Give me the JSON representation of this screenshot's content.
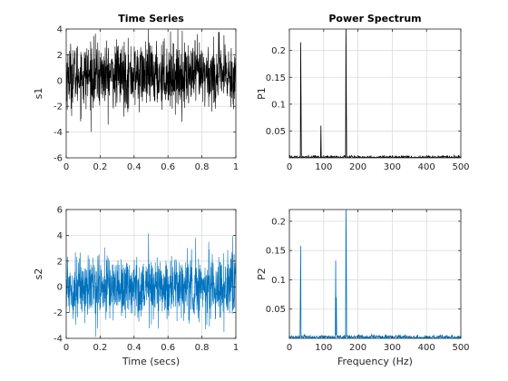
{
  "chart_data": [
    {
      "type": "line",
      "title": "Time Series",
      "xlabel": "",
      "ylabel": "s1",
      "xlim": [
        0,
        1
      ],
      "ylim": [
        -6,
        4
      ],
      "xticks": [
        0,
        0.2,
        0.4,
        0.6,
        0.8,
        1
      ],
      "yticks": [
        -6,
        -4,
        -2,
        0,
        2,
        4
      ],
      "xtick_labels": [
        "0",
        "0.2",
        "0.4",
        "0.6",
        "0.8",
        "1"
      ],
      "ytick_labels": [
        "-6",
        "-4",
        "-2",
        "0",
        "2",
        "4"
      ],
      "grid": true,
      "series": [
        {
          "color": "#000000",
          "sample_rate_hz": 1000,
          "x_start": 0,
          "x_end": 1,
          "mean": 0.4,
          "spread": 1.25,
          "min": -4.2,
          "max": 4
        }
      ]
    },
    {
      "type": "line",
      "title": "Power Spectrum",
      "xlabel": "",
      "ylabel": "P1",
      "xlim": [
        0,
        500
      ],
      "ylim": [
        0,
        0.24
      ],
      "xticks": [
        0,
        100,
        200,
        300,
        400,
        500
      ],
      "yticks": [
        0.05,
        0.1,
        0.15,
        0.2
      ],
      "xtick_labels": [
        "0",
        "100",
        "200",
        "300",
        "400",
        "500"
      ],
      "ytick_labels": [
        "0.05",
        "0.1",
        "0.15",
        "0.2"
      ],
      "grid": true,
      "series": [
        {
          "color": "#000000",
          "noise_floor": 0.004,
          "peaks": [
            {
              "x": 33,
              "y": 0.215
            },
            {
              "x": 34,
              "y": 0.115
            },
            {
              "x": 92,
              "y": 0.06
            },
            {
              "x": 165,
              "y": 0.25
            },
            {
              "x": 166,
              "y": 0.12
            }
          ]
        }
      ]
    },
    {
      "type": "line",
      "title": "",
      "xlabel": "Time (secs)",
      "ylabel": "s2",
      "xlim": [
        0,
        1
      ],
      "ylim": [
        -4,
        6
      ],
      "xticks": [
        0,
        0.2,
        0.4,
        0.6,
        0.8,
        1
      ],
      "yticks": [
        -4,
        -2,
        0,
        2,
        4,
        6
      ],
      "xtick_labels": [
        "0",
        "0.2",
        "0.4",
        "0.6",
        "0.8",
        "1"
      ],
      "ytick_labels": [
        "-4",
        "-2",
        "0",
        "2",
        "4",
        "6"
      ],
      "grid": true,
      "series": [
        {
          "color": "#0072bd",
          "sample_rate_hz": 1000,
          "x_start": 0,
          "x_end": 1,
          "mean": 0,
          "spread": 1.2,
          "min": -4,
          "max": 4.5
        }
      ]
    },
    {
      "type": "line",
      "title": "",
      "xlabel": "Frequency (Hz)",
      "ylabel": "P2",
      "xlim": [
        0,
        500
      ],
      "ylim": [
        0,
        0.22
      ],
      "xticks": [
        0,
        100,
        200,
        300,
        400,
        500
      ],
      "yticks": [
        0.05,
        0.1,
        0.15,
        0.2
      ],
      "xtick_labels": [
        "0",
        "100",
        "200",
        "300",
        "400",
        "500"
      ],
      "ytick_labels": [
        "0.05",
        "0.1",
        "0.15",
        "0.2"
      ],
      "grid": true,
      "series": [
        {
          "color": "#0072bd",
          "noise_floor": 0.006,
          "peaks": [
            {
              "x": 33,
              "y": 0.158
            },
            {
              "x": 32,
              "y": 0.08
            },
            {
              "x": 135,
              "y": 0.133
            },
            {
              "x": 137,
              "y": 0.07
            },
            {
              "x": 165,
              "y": 0.23
            },
            {
              "x": 166,
              "y": 0.16
            }
          ]
        }
      ]
    }
  ]
}
